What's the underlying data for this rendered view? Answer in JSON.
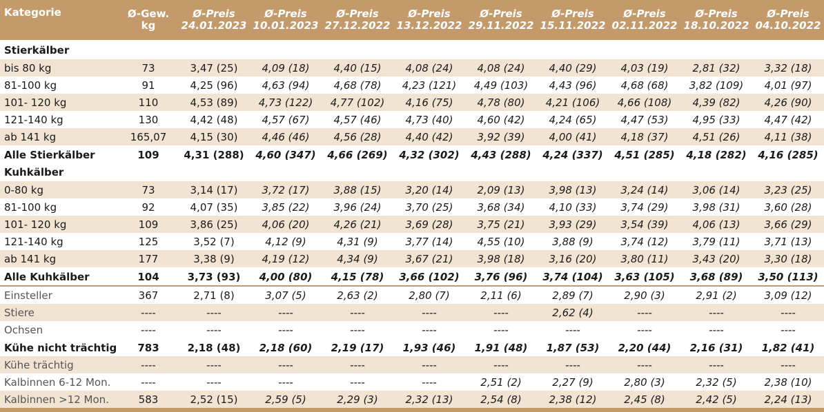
{
  "headers": [
    {
      "line1": "Kategorie",
      "line2": ""
    },
    {
      "line1": "Ø-Gew.",
      "line2": "kg"
    },
    {
      "line1": "Ø-Preis",
      "line2": "24.01.2023"
    },
    {
      "line1": "Ø-Preis",
      "line2": "10.01.2023"
    },
    {
      "line1": "Ø-Preis",
      "line2": "27.12.2022"
    },
    {
      "line1": "Ø-Preis",
      "line2": "13.12.2022"
    },
    {
      "line1": "Ø-Preis",
      "line2": "29.11.2022"
    },
    {
      "line1": "Ø-Preis",
      "line2": "15.11.2022"
    },
    {
      "line1": "Ø-Preis",
      "line2": "02.11.2022"
    },
    {
      "line1": "Ø-Preis",
      "line2": "18.10.2022"
    },
    {
      "line1": "Ø-Preis",
      "line2": "04.10.2022"
    }
  ],
  "rows": [
    {
      "kind": "section",
      "cells": [
        "Stierkälber"
      ]
    },
    {
      "kind": "data",
      "cells": [
        "bis 80 kg",
        "73",
        "3,47 (25)",
        "4,09 (18)",
        "4,40 (15)",
        "4,08 (24)",
        "4,08 (24)",
        "4,40 (29)",
        "4,03 (19)",
        "2,81 (32)",
        "3,32 (18)"
      ]
    },
    {
      "kind": "data",
      "cells": [
        "81-100 kg",
        "91",
        "4,25 (96)",
        "4,63 (94)",
        "4,68 (78)",
        "4,23 (121)",
        "4,49 (103)",
        "4,43 (96)",
        "4,68 (68)",
        "3,82 (109)",
        "4,01 (97)"
      ]
    },
    {
      "kind": "data",
      "cells": [
        "101- 120 kg",
        "110",
        "4,53 (89)",
        "4,73 (122)",
        "4,77 (102)",
        "4,16 (75)",
        "4,78 (80)",
        "4,21 (106)",
        "4,66 (108)",
        "4,39 (82)",
        "4,26 (90)"
      ]
    },
    {
      "kind": "data",
      "cells": [
        "121-140 kg",
        "130",
        "4,42 (48)",
        "4,57 (67)",
        "4,57 (46)",
        "4,73 (40)",
        "4,60 (42)",
        "4,24 (65)",
        "4,47 (53)",
        "4,95 (33)",
        "4,47 (42)"
      ]
    },
    {
      "kind": "data",
      "cells": [
        "ab 141 kg",
        "165,07",
        "4,15 (30)",
        "4,46 (46)",
        "4,56 (28)",
        "4,40 (42)",
        "3,92 (39)",
        "4,00 (41)",
        "4,18 (37)",
        "4,51 (26)",
        "4,11 (38)"
      ]
    },
    {
      "kind": "total",
      "cells": [
        "Alle Stierkälber",
        "109",
        "4,31 (288)",
        "4,60 (347)",
        "4,66 (269)",
        "4,32 (302)",
        "4,43 (288)",
        "4,24 (337)",
        "4,51 (285)",
        "4,18 (282)",
        "4,16 (285)"
      ]
    },
    {
      "kind": "section",
      "cells": [
        "Kuhkälber"
      ]
    },
    {
      "kind": "data",
      "cells": [
        "0-80 kg",
        "73",
        "3,14 (17)",
        "3,72 (17)",
        "3,88 (15)",
        "3,20 (14)",
        "2,09 (13)",
        "3,98 (13)",
        "3,24 (14)",
        "3,06 (14)",
        "3,23 (25)"
      ]
    },
    {
      "kind": "data",
      "cells": [
        "81-100 kg",
        "92",
        "4,07 (35)",
        "3,85 (22)",
        "3,96 (24)",
        "3,70 (25)",
        "3,68 (34)",
        "4,10 (33)",
        "3,74 (29)",
        "3,98 (31)",
        "3,60 (28)"
      ]
    },
    {
      "kind": "data",
      "cells": [
        "101- 120 kg",
        "109",
        "3,86 (25)",
        "4,06 (20)",
        "4,26 (21)",
        "3,69 (28)",
        "3,75 (21)",
        "3,93 (29)",
        "3,54 (39)",
        "4,06 (13)",
        "3,66 (29)"
      ]
    },
    {
      "kind": "data",
      "cells": [
        "121-140 kg",
        "125",
        "3,52 (7)",
        "4,12 (9)",
        "4,31 (9)",
        "3,77 (14)",
        "4,55 (10)",
        "3,88 (9)",
        "3,74 (12)",
        "3,79 (11)",
        "3,71 (13)"
      ]
    },
    {
      "kind": "data",
      "cells": [
        "ab 141 kg",
        "177",
        "3,38 (9)",
        "4,19 (12)",
        "4,34 (9)",
        "3,67 (21)",
        "3,98 (18)",
        "3,16 (20)",
        "3,80 (11)",
        "3,43 (20)",
        "3,30 (18)"
      ]
    },
    {
      "kind": "total",
      "cells": [
        "Alle Kuhkälber",
        "104",
        "3,73 (93)",
        "4,00 (80)",
        "4,15 (78)",
        "3,66 (102)",
        "3,76 (96)",
        "3,74 (104)",
        "3,63 (105)",
        "3,68 (89)",
        "3,50 (113)"
      ]
    },
    {
      "kind": "other",
      "cells": [
        "Einsteller",
        "367",
        "2,71 (8)",
        "3,07 (5)",
        "2,63 (2)",
        "2,80 (7)",
        "2,11 (6)",
        "2,89 (7)",
        "2,90 (3)",
        "2,91 (2)",
        "3,09 (12)"
      ]
    },
    {
      "kind": "other",
      "cells": [
        "Stiere",
        "----",
        "----",
        "----",
        "----",
        "----",
        "----",
        "2,62 (4)",
        "----",
        "----",
        "----"
      ]
    },
    {
      "kind": "other",
      "cells": [
        "Ochsen",
        "----",
        "----",
        "----",
        "----",
        "----",
        "----",
        "----",
        "----",
        "----",
        "----"
      ]
    },
    {
      "kind": "total",
      "cells": [
        "Kühe nicht trächtig",
        "783",
        "2,18 (48)",
        "2,18 (60)",
        "2,19 (17)",
        "1,93 (46)",
        "1,91 (48)",
        "1,87 (53)",
        "2,20 (44)",
        "2,16 (31)",
        "1,82 (41)"
      ]
    },
    {
      "kind": "other",
      "cells": [
        "Kühe trächtig",
        "----",
        "----",
        "----",
        "----",
        "----",
        "----",
        "----",
        "----",
        "----",
        "----"
      ]
    },
    {
      "kind": "other",
      "cells": [
        "Kalbinnen 6-12 Mon.",
        "----",
        "----",
        "----",
        "----",
        "----",
        "2,51 (2)",
        "2,27 (9)",
        "2,80 (3)",
        "2,32 (5)",
        "2,38 (10)"
      ]
    },
    {
      "kind": "other",
      "cells": [
        "Kalbinnen >12 Mon.",
        "583",
        "2,52 (15)",
        "2,59 (5)",
        "2,29 (3)",
        "2,32 (13)",
        "2,54 (8)",
        "2,38 (12)",
        "2,45 (8)",
        "2,42 (5)",
        "2,24 (13)"
      ]
    }
  ],
  "italic_columns": [
    3,
    4,
    5,
    6,
    7,
    8,
    9,
    10
  ]
}
